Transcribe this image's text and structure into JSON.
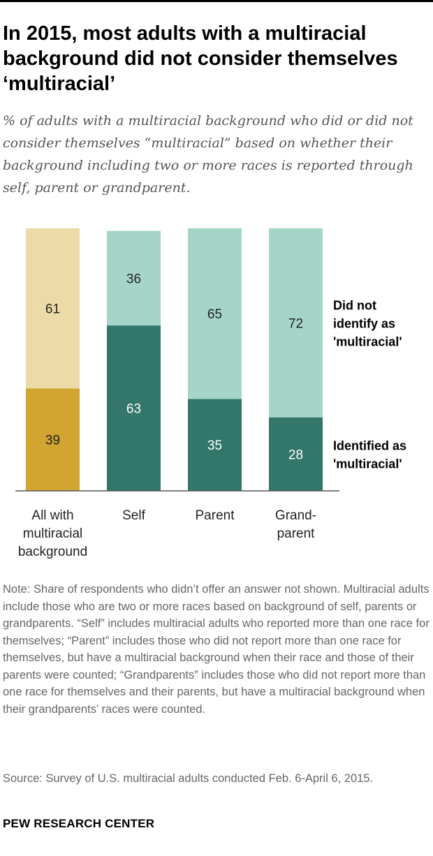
{
  "title": "In 2015, most adults with a multiracial background did not consider themselves ‘multiracial’",
  "subtitle": "% of adults with a multiracial background who did or did not consider themselves “multiracial” based on whether their background including two or more races is reported through self, parent or grandparent.",
  "note": "Note: Share of respondents who didn’t offer an answer not shown. Multiracial adults include those who are two or more races based on background of self, parents or grandparents. “Self” includes multiracial adults who reported more than one race for themselves; “Parent” includes those who did not report more than one race for themselves, but have a multiracial background when their race and those of their parents were counted; “Grandparents” includes those who did not report more than one race for themselves and their parents, but have a multiracial background when their grandparents’ races were counted.",
  "source": "Source: Survey of U.S. multiracial adults conducted Feb. 6-April 6, 2015.",
  "brand": "PEW RESEARCH CENTER",
  "chart_data": {
    "type": "bar",
    "stacked": true,
    "orientation": "vertical",
    "categories": [
      [
        "All with",
        "multiracial",
        "background"
      ],
      [
        "Self"
      ],
      [
        "Parent"
      ],
      [
        "Grand-",
        "parent"
      ]
    ],
    "series": [
      {
        "name": "Identified as 'multiracial'",
        "legend_lines": [
          "Identified as",
          "'multiracial'"
        ],
        "values": [
          39,
          63,
          35,
          28
        ],
        "colors": [
          "#d1a52f",
          "#33776a",
          "#33776a",
          "#33776a"
        ]
      },
      {
        "name": "Did not identify as 'multiracial'",
        "legend_lines": [
          "Did not",
          "identify as",
          "'multiracial'"
        ],
        "values": [
          61,
          36,
          65,
          72
        ],
        "colors": [
          "#ecdba6",
          "#a5d4c9",
          "#a5d4c9",
          "#a5d4c9"
        ]
      }
    ],
    "ylim": [
      0,
      100
    ],
    "legend_position": "right",
    "grid": false,
    "colors": {
      "baseline": "#555555",
      "label_on_dark": "#ffffff",
      "label_on_light": "#222222",
      "category_text": "#222222",
      "legend_text": "#000000"
    }
  }
}
